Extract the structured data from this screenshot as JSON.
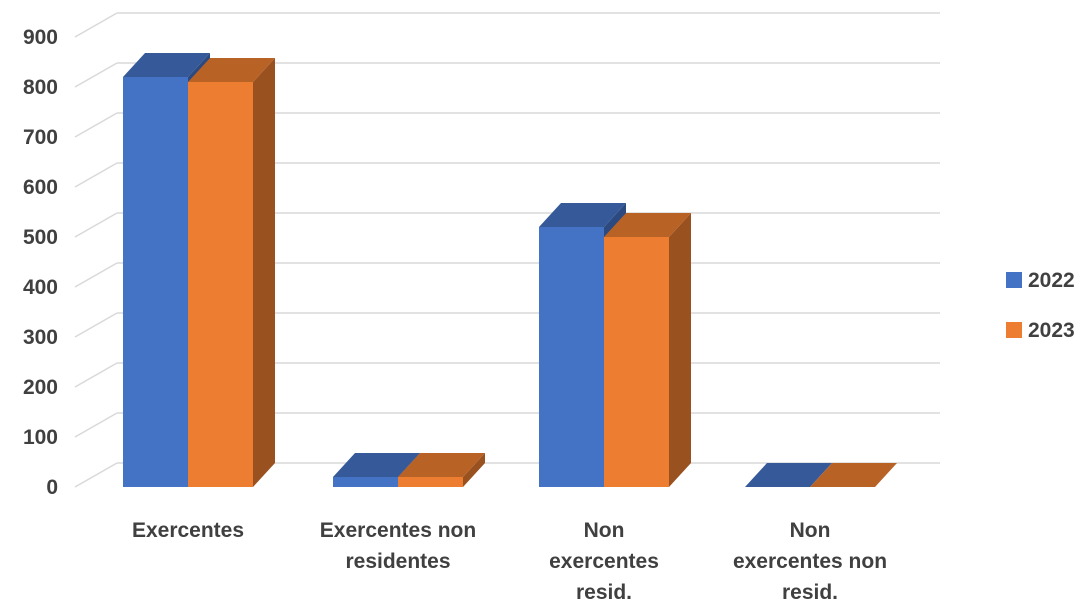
{
  "chart_data": {
    "type": "bar",
    "categories": [
      [
        "Exercentes"
      ],
      [
        "Exercentes non",
        "residentes"
      ],
      [
        "Non",
        "exercentes",
        "resid."
      ],
      [
        "Non",
        "exercentes non",
        "resid."
      ]
    ],
    "series": [
      {
        "name": "2022",
        "values": [
          820,
          20,
          520,
          0
        ],
        "color": "#4472C4"
      },
      {
        "name": "2023",
        "values": [
          810,
          20,
          500,
          0
        ],
        "color": "#ED7D31"
      }
    ],
    "y_ticks": [
      "0",
      "100",
      "200",
      "300",
      "400",
      "500",
      "600",
      "700",
      "800",
      "900"
    ],
    "ylim": [
      0,
      900
    ],
    "grid": true,
    "legend_position": "right",
    "style": "3d-clustered-column"
  }
}
